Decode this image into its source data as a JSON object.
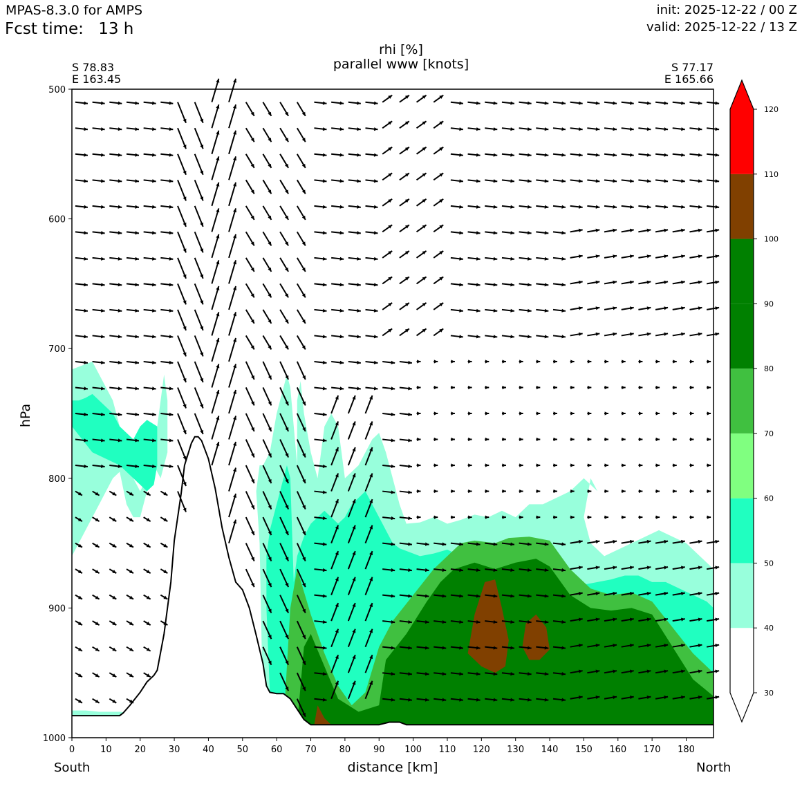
{
  "header": {
    "app_title": "MPAS-8.3.0 for AMPS",
    "fcst_label": "Fcst time:",
    "fcst_value": "13 h",
    "init": "init: 2025-12-22 / 00 Z",
    "valid": "valid: 2025-12-22 / 13 Z"
  },
  "chart_data": {
    "type": "cross-section",
    "title": "rhi [%]",
    "subtitle": "parallel www [knots]",
    "start_point": {
      "lat": "S 78.83",
      "lon": "E 163.45"
    },
    "end_point": {
      "lat": "S 77.17",
      "lon": "E 165.66"
    },
    "xlabel": "distance [km]",
    "ylabel": "hPa",
    "x_left_label": "South",
    "x_right_label": "North",
    "xlim": [
      0,
      188
    ],
    "ylim": [
      1000,
      500
    ],
    "xticks": [
      "0",
      "10",
      "20",
      "30",
      "40",
      "50",
      "60",
      "70",
      "80",
      "90",
      "100",
      "110",
      "120",
      "130",
      "140",
      "150",
      "160",
      "170",
      "180"
    ],
    "yticks": [
      "500",
      "600",
      "700",
      "800",
      "900",
      "1000"
    ],
    "colorbar": {
      "ticks": [
        "30",
        "40",
        "50",
        "60",
        "70",
        "80",
        "90",
        "100",
        "110",
        "120"
      ],
      "levels": [
        30,
        40,
        50,
        60,
        70,
        80,
        90,
        100,
        110,
        120
      ],
      "colors": [
        "#ffffff",
        "#98ffdc",
        "#20ffc0",
        "#80ff80",
        "#40c040",
        "#008000",
        "#008000",
        "#804000",
        "#ff0000"
      ]
    },
    "terrain": [
      [
        0,
        983
      ],
      [
        14,
        983
      ],
      [
        15,
        981
      ],
      [
        17,
        975
      ],
      [
        20,
        965
      ],
      [
        22,
        957
      ],
      [
        24,
        952
      ],
      [
        25,
        948
      ],
      [
        27,
        920
      ],
      [
        29,
        880
      ],
      [
        30,
        848
      ],
      [
        32,
        812
      ],
      [
        33,
        790
      ],
      [
        35,
        773
      ],
      [
        36,
        768
      ],
      [
        37,
        768
      ],
      [
        38,
        771
      ],
      [
        40,
        785
      ],
      [
        42,
        808
      ],
      [
        44,
        838
      ],
      [
        46,
        861
      ],
      [
        48,
        880
      ],
      [
        50,
        886
      ],
      [
        52,
        900
      ],
      [
        54,
        921
      ],
      [
        56,
        943
      ],
      [
        57,
        960
      ],
      [
        58,
        965
      ],
      [
        60,
        966
      ],
      [
        62,
        966
      ],
      [
        64,
        970
      ],
      [
        66,
        978
      ],
      [
        68,
        986
      ],
      [
        70,
        990
      ],
      [
        80,
        990
      ],
      [
        85,
        990
      ],
      [
        90,
        990
      ],
      [
        93,
        988
      ],
      [
        96,
        988
      ],
      [
        98,
        990
      ],
      [
        188,
        990
      ]
    ],
    "rhi_regions": [
      {
        "level": 40,
        "x": [
          0,
          0,
          4,
          8,
          12,
          14,
          16,
          18,
          20,
          22,
          24,
          25,
          26,
          27,
          28,
          28,
          26,
          24,
          22,
          20,
          18,
          16,
          14,
          12,
          10,
          8,
          6,
          4,
          2
        ],
        "p": [
          716,
          860,
          840,
          820,
          800,
          795,
          820,
          830,
          830,
          810,
          790,
          760,
          740,
          720,
          740,
          780,
          800,
          790,
          800,
          810,
          800,
          780,
          760,
          740,
          730,
          720,
          710,
          712,
          714
        ]
      },
      {
        "level": 40,
        "x": [
          0,
          0,
          4,
          8,
          14,
          18,
          22,
          22,
          18,
          14,
          8,
          4
        ],
        "p": [
          979,
          983,
          983,
          983,
          983,
          983,
          983,
          981,
          981,
          980,
          980,
          979
        ]
      },
      {
        "level": 40,
        "x": [
          56,
          57,
          59,
          61,
          63,
          65,
          66,
          67,
          68,
          70,
          72,
          74,
          78,
          80,
          84,
          88,
          90,
          93,
          95,
          96,
          98,
          102,
          106,
          110,
          114,
          118,
          122,
          126,
          130,
          134,
          138,
          142,
          146,
          150,
          154,
          158,
          162,
          166,
          170,
          174,
          178,
          182,
          186,
          188,
          188,
          184,
          180,
          176,
          172,
          168,
          164,
          160,
          156,
          152,
          150,
          152,
          154,
          152,
          150,
          146,
          142,
          138,
          134,
          130,
          126,
          122,
          118,
          114,
          110,
          106,
          102,
          98,
          96,
          94,
          93,
          92,
          90,
          88,
          86,
          84,
          82,
          80,
          78,
          76,
          74,
          73,
          72,
          70,
          68,
          67,
          66,
          66,
          65,
          64,
          63,
          62,
          60,
          58,
          56,
          55,
          54,
          55
        ],
        "p": [
          980,
          990,
          990,
          990,
          990,
          990,
          990,
          990,
          990,
          990,
          990,
          990,
          990,
          990,
          990,
          990,
          990,
          990,
          990,
          990,
          990,
          990,
          990,
          990,
          990,
          990,
          990,
          990,
          990,
          990,
          990,
          990,
          990,
          990,
          990,
          990,
          990,
          990,
          990,
          990,
          990,
          990,
          990,
          990,
          870,
          860,
          850,
          845,
          840,
          845,
          850,
          855,
          860,
          850,
          830,
          800,
          810,
          805,
          800,
          810,
          815,
          820,
          820,
          830,
          825,
          830,
          828,
          832,
          835,
          830,
          834,
          835,
          820,
          800,
          790,
          780,
          765,
          770,
          780,
          790,
          795,
          800,
          760,
          750,
          760,
          780,
          800,
          780,
          750,
          725,
          740,
          790,
          760,
          730,
          720,
          730,
          750,
          780,
          790,
          790,
          810,
          850
        ]
      },
      {
        "level": 50,
        "x": [
          0,
          0,
          3,
          6,
          10,
          14,
          18,
          22,
          24,
          25,
          25,
          22,
          20,
          18,
          16,
          14,
          12,
          10,
          8,
          6,
          4,
          2
        ],
        "p": [
          740,
          760,
          770,
          780,
          785,
          790,
          800,
          810,
          805,
          790,
          760,
          755,
          760,
          770,
          765,
          760,
          750,
          745,
          740,
          735,
          738,
          740
        ]
      },
      {
        "level": 50,
        "x": [
          58,
          60,
          62,
          64,
          66,
          68,
          70,
          72,
          74,
          76,
          78,
          80,
          82,
          84,
          86,
          88,
          90,
          92,
          94,
          96,
          98,
          100,
          102,
          104,
          106,
          110,
          114,
          118,
          122,
          126,
          130,
          134,
          138,
          142,
          146,
          150,
          154,
          158,
          162,
          166,
          170,
          174,
          178,
          182,
          186,
          188,
          188,
          186,
          182,
          178,
          174,
          170,
          166,
          162,
          158,
          154,
          150,
          146,
          142,
          138,
          134,
          130,
          126,
          122,
          118,
          114,
          110,
          106,
          102,
          98,
          96,
          94,
          92,
          90,
          88,
          86,
          84,
          82,
          80,
          78,
          76,
          74,
          72,
          70,
          68,
          66,
          65,
          64,
          63,
          62,
          61,
          60,
          59,
          58,
          57,
          57
        ],
        "p": [
          965,
          970,
          975,
          980,
          985,
          985,
          985,
          985,
          985,
          985,
          985,
          985,
          985,
          985,
          985,
          985,
          985,
          985,
          985,
          985,
          985,
          985,
          985,
          985,
          985,
          985,
          985,
          985,
          985,
          985,
          985,
          985,
          985,
          985,
          985,
          985,
          985,
          985,
          985,
          985,
          985,
          985,
          985,
          985,
          985,
          985,
          900,
          895,
          890,
          885,
          880,
          880,
          875,
          875,
          878,
          880,
          882,
          880,
          875,
          870,
          865,
          865,
          868,
          872,
          865,
          860,
          855,
          858,
          860,
          856,
          854,
          850,
          840,
          830,
          820,
          810,
          815,
          820,
          830,
          835,
          830,
          825,
          830,
          835,
          845,
          860,
          880,
          800,
          790,
          800,
          810,
          820,
          830,
          840,
          860,
          900
        ]
      }
    ],
    "vectors_note": "wind barbs along the transect"
  }
}
